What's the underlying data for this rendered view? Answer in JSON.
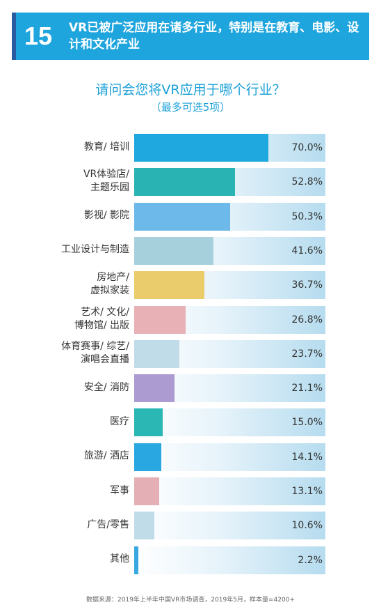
{
  "header": {
    "number": "15",
    "title": "VR已被广泛应用在诸多行业，特别是在教育、电影、设计和文化产业"
  },
  "chart_data": {
    "type": "bar",
    "title": "请问会您将VR应用于哪个行业？",
    "subtitle": "（最多可选5项）",
    "xlim": [
      0,
      100
    ],
    "categories": [
      "教育/ 培训",
      "VR体验店/\n主题乐园",
      "影视/ 影院",
      "工业设计与制造",
      "房地产/\n虚拟家装",
      "艺术/ 文化/\n博物馆/ 出版",
      "体育赛事/ 综艺/\n演唱会直播",
      "安全/ 消防",
      "医疗",
      "旅游/ 酒店",
      "军事",
      "广告/零售",
      "其他"
    ],
    "values": [
      70.0,
      52.8,
      50.3,
      41.6,
      36.7,
      26.8,
      23.7,
      21.1,
      15.0,
      14.1,
      13.1,
      10.6,
      2.2
    ],
    "value_labels": [
      "70.0%",
      "52.8%",
      "50.3%",
      "41.6%",
      "36.7%",
      "26.8%",
      "23.7%",
      "21.1%",
      "15.0%",
      "14.1%",
      "13.1%",
      "10.6%",
      "2.2%"
    ],
    "bar_colors": [
      "#1ea8df",
      "#2ab3b3",
      "#6cb9ea",
      "#a7d0dd",
      "#ebcc6d",
      "#e8b1b6",
      "#c0dce8",
      "#ab9bd1",
      "#2bb7b3",
      "#29a7e0",
      "#e4b0b5",
      "#c0dce8",
      "#3aa8e0"
    ]
  },
  "source": "数据来源：2019年上半年中国VR市场调查，2019年5月，样本量=4200+"
}
